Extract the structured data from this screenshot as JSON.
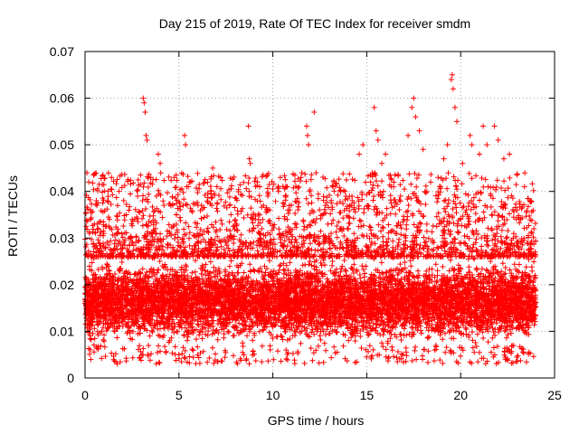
{
  "chart_data": {
    "type": "scatter",
    "title": "Day 215 of 2019, Rate Of TEC Index for receiver smdm",
    "xlabel": "GPS time / hours",
    "ylabel": "ROTI / TECUs",
    "xlim": [
      0,
      25
    ],
    "ylim": [
      0,
      0.07
    ],
    "xticks": [
      0,
      5,
      10,
      15,
      20,
      25
    ],
    "xtick_labels": [
      "0",
      "5",
      "10",
      "15",
      "20",
      "25"
    ],
    "yticks": [
      0,
      0.01,
      0.02,
      0.03,
      0.04,
      0.05,
      0.06,
      0.07
    ],
    "ytick_labels": [
      "0",
      "0.01",
      "0.02",
      "0.03",
      "0.04",
      "0.05",
      "0.06",
      "0.07"
    ],
    "grid": true,
    "marker": "plus",
    "series": [
      {
        "name": "ROTI",
        "color": "#ff0000",
        "x_range": [
          0,
          24
        ],
        "dense_band": [
          0.007,
          0.026
        ],
        "typical_value": 0.014,
        "points": [
          [
            0.1,
            0.044
          ],
          [
            0.2,
            0.042
          ],
          [
            0.3,
            0.036
          ],
          [
            0.5,
            0.033
          ],
          [
            0.6,
            0.038
          ],
          [
            1.0,
            0.031
          ],
          [
            1.3,
            0.034
          ],
          [
            2.2,
            0.035
          ],
          [
            2.8,
            0.039
          ],
          [
            3.1,
            0.06
          ],
          [
            3.15,
            0.059
          ],
          [
            3.2,
            0.057
          ],
          [
            3.25,
            0.052
          ],
          [
            3.3,
            0.051
          ],
          [
            3.5,
            0.043
          ],
          [
            3.8,
            0.039
          ],
          [
            3.9,
            0.048
          ],
          [
            4.0,
            0.046
          ],
          [
            4.2,
            0.037
          ],
          [
            5.3,
            0.052
          ],
          [
            5.35,
            0.05
          ],
          [
            5.5,
            0.041
          ],
          [
            5.6,
            0.042
          ],
          [
            6.2,
            0.037
          ],
          [
            6.8,
            0.045
          ],
          [
            7.3,
            0.033
          ],
          [
            7.7,
            0.037
          ],
          [
            8.7,
            0.054
          ],
          [
            8.75,
            0.047
          ],
          [
            8.8,
            0.046
          ],
          [
            9.3,
            0.041
          ],
          [
            9.5,
            0.037
          ],
          [
            10.3,
            0.04
          ],
          [
            10.4,
            0.043
          ],
          [
            10.8,
            0.036
          ],
          [
            11.5,
            0.043
          ],
          [
            11.8,
            0.054
          ],
          [
            11.85,
            0.052
          ],
          [
            11.9,
            0.05
          ],
          [
            12.2,
            0.057
          ],
          [
            12.3,
            0.044
          ],
          [
            12.8,
            0.037
          ],
          [
            13.2,
            0.041
          ],
          [
            13.6,
            0.04
          ],
          [
            14.2,
            0.037
          ],
          [
            14.6,
            0.048
          ],
          [
            14.8,
            0.05
          ],
          [
            15.3,
            0.044
          ],
          [
            15.4,
            0.058
          ],
          [
            15.5,
            0.053
          ],
          [
            15.6,
            0.051
          ],
          [
            15.8,
            0.046
          ],
          [
            16.0,
            0.048
          ],
          [
            16.3,
            0.041
          ],
          [
            16.8,
            0.039
          ],
          [
            17.2,
            0.052
          ],
          [
            17.4,
            0.058
          ],
          [
            17.5,
            0.06
          ],
          [
            17.6,
            0.056
          ],
          [
            17.8,
            0.053
          ],
          [
            18.0,
            0.049
          ],
          [
            18.4,
            0.042
          ],
          [
            18.8,
            0.043
          ],
          [
            19.1,
            0.047
          ],
          [
            19.3,
            0.05
          ],
          [
            19.5,
            0.064
          ],
          [
            19.55,
            0.065
          ],
          [
            19.6,
            0.062
          ],
          [
            19.7,
            0.058
          ],
          [
            19.8,
            0.055
          ],
          [
            20.1,
            0.046
          ],
          [
            20.5,
            0.052
          ],
          [
            20.6,
            0.05
          ],
          [
            21.0,
            0.048
          ],
          [
            21.2,
            0.054
          ],
          [
            21.4,
            0.05
          ],
          [
            21.8,
            0.054
          ],
          [
            22.0,
            0.051
          ],
          [
            22.3,
            0.047
          ],
          [
            22.6,
            0.048
          ],
          [
            23.0,
            0.036
          ],
          [
            23.4,
            0.041
          ],
          [
            23.7,
            0.038
          ],
          [
            23.9,
            0.032
          ]
        ]
      }
    ]
  }
}
